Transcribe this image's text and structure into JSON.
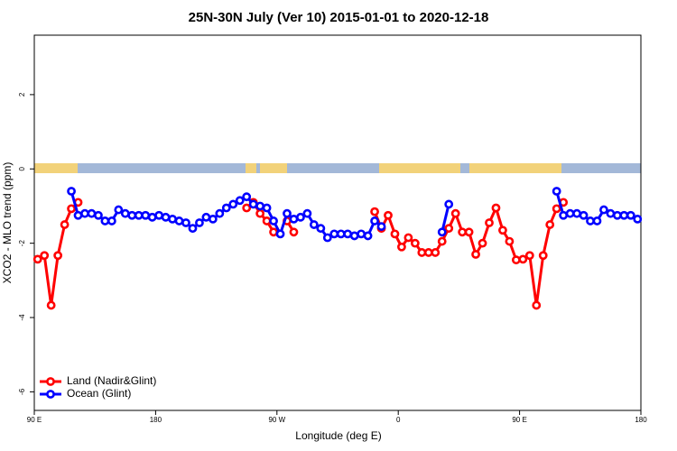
{
  "chart_data": {
    "type": "line",
    "title": "25N-30N July (Ver 10)   2015-01-01 to 2020-12-18",
    "x_label": "Longitude (deg E)",
    "y_label": "XCO2 - MLO trend (ppm)",
    "x": [
      92.5,
      97.5,
      102.5,
      107.5,
      112.5,
      117.5,
      122.5,
      127.5,
      132.5,
      137.5,
      142.5,
      147.5,
      152.5,
      157.5,
      162.5,
      167.5,
      172.5,
      177.5,
      182.5,
      187.5,
      192.5,
      197.5,
      202.5,
      207.5,
      212.5,
      217.5,
      222.5,
      227.5,
      232.5,
      237.5,
      242.5,
      247.5,
      252.5,
      257.5,
      262.5,
      267.5,
      272.5,
      277.5,
      282.5,
      287.5,
      292.5,
      297.5,
      302.5,
      307.5,
      312.5,
      317.5,
      322.5,
      327.5,
      332.5,
      337.5,
      342.5,
      347.5,
      352.5,
      357.5,
      362.5,
      367.5,
      372.5,
      377.5,
      382.5,
      387.5,
      392.5,
      397.5,
      402.5,
      407.5,
      412.5,
      417.5,
      422.5,
      427.5,
      432.5,
      437.5,
      442.5,
      447.5,
      452.5,
      457.5,
      462.5,
      467.5,
      472.5,
      477.5,
      482.5,
      487.5,
      492.5,
      497.5,
      502.5,
      507.5,
      512.5,
      517.5,
      522.5,
      527.5,
      532.5,
      537.5
    ],
    "series": [
      {
        "name": "Land (Nadir&Glint)",
        "color": "#ff0000",
        "values": [
          -2.43,
          -2.33,
          -3.67,
          -2.33,
          -1.5,
          -1.07,
          -0.9,
          null,
          null,
          null,
          null,
          null,
          null,
          null,
          null,
          null,
          null,
          null,
          null,
          null,
          null,
          null,
          null,
          null,
          null,
          null,
          null,
          null,
          null,
          null,
          null,
          -1.05,
          -0.9,
          -1.2,
          -1.4,
          -1.7,
          null,
          -1.4,
          -1.7,
          null,
          null,
          null,
          null,
          null,
          null,
          null,
          null,
          null,
          null,
          null,
          -1.15,
          -1.6,
          -1.25,
          -1.75,
          -2.1,
          -1.85,
          -2.0,
          -2.25,
          -2.25,
          -2.25,
          -1.95,
          -1.6,
          -1.2,
          -1.7,
          -1.7,
          -2.3,
          -2.0,
          -1.45,
          -1.05,
          -1.65,
          -1.95,
          -2.45,
          -2.43,
          -2.33,
          -3.67,
          -2.33,
          -1.5,
          -1.07,
          -0.9,
          null,
          null,
          null,
          null,
          null,
          null,
          null,
          null,
          null,
          null,
          null
        ]
      },
      {
        "name": "Ocean (Glint)",
        "color": "#0000ff",
        "values": [
          null,
          null,
          null,
          null,
          null,
          -0.6,
          -1.25,
          -1.2,
          -1.2,
          -1.25,
          -1.4,
          -1.4,
          -1.1,
          -1.2,
          -1.25,
          -1.25,
          -1.25,
          -1.3,
          -1.25,
          -1.3,
          -1.35,
          -1.4,
          -1.45,
          -1.6,
          -1.45,
          -1.3,
          -1.35,
          -1.2,
          -1.05,
          -0.95,
          -0.85,
          -0.75,
          -0.95,
          -1.0,
          -1.05,
          -1.4,
          -1.75,
          -1.2,
          -1.35,
          -1.3,
          -1.2,
          -1.5,
          -1.6,
          -1.85,
          -1.75,
          -1.75,
          -1.75,
          -1.8,
          -1.75,
          -1.8,
          -1.4,
          -1.55,
          null,
          null,
          null,
          null,
          null,
          null,
          null,
          null,
          -1.7,
          -0.95,
          null,
          null,
          null,
          null,
          null,
          null,
          null,
          null,
          null,
          null,
          null,
          null,
          null,
          null,
          null,
          -0.6,
          -1.25,
          -1.2,
          -1.2,
          -1.25,
          -1.4,
          -1.4,
          -1.1,
          -1.2,
          -1.25,
          -1.25,
          -1.25,
          -1.35
        ]
      }
    ],
    "xlim": [
      90,
      540
    ],
    "xticks": [
      {
        "value": 90,
        "label": "90 E"
      },
      180,
      {
        "value": 270,
        "label": "90 W"
      },
      {
        "value": 360,
        "label": "0"
      },
      {
        "value": 450,
        "label": "90 E"
      },
      {
        "value": 540,
        "label": "180"
      }
    ],
    "ylim": [
      -6.5,
      3.6
    ],
    "yticks": [
      -6,
      -4,
      -2,
      0,
      2
    ],
    "legend": "bottom-left"
  }
}
